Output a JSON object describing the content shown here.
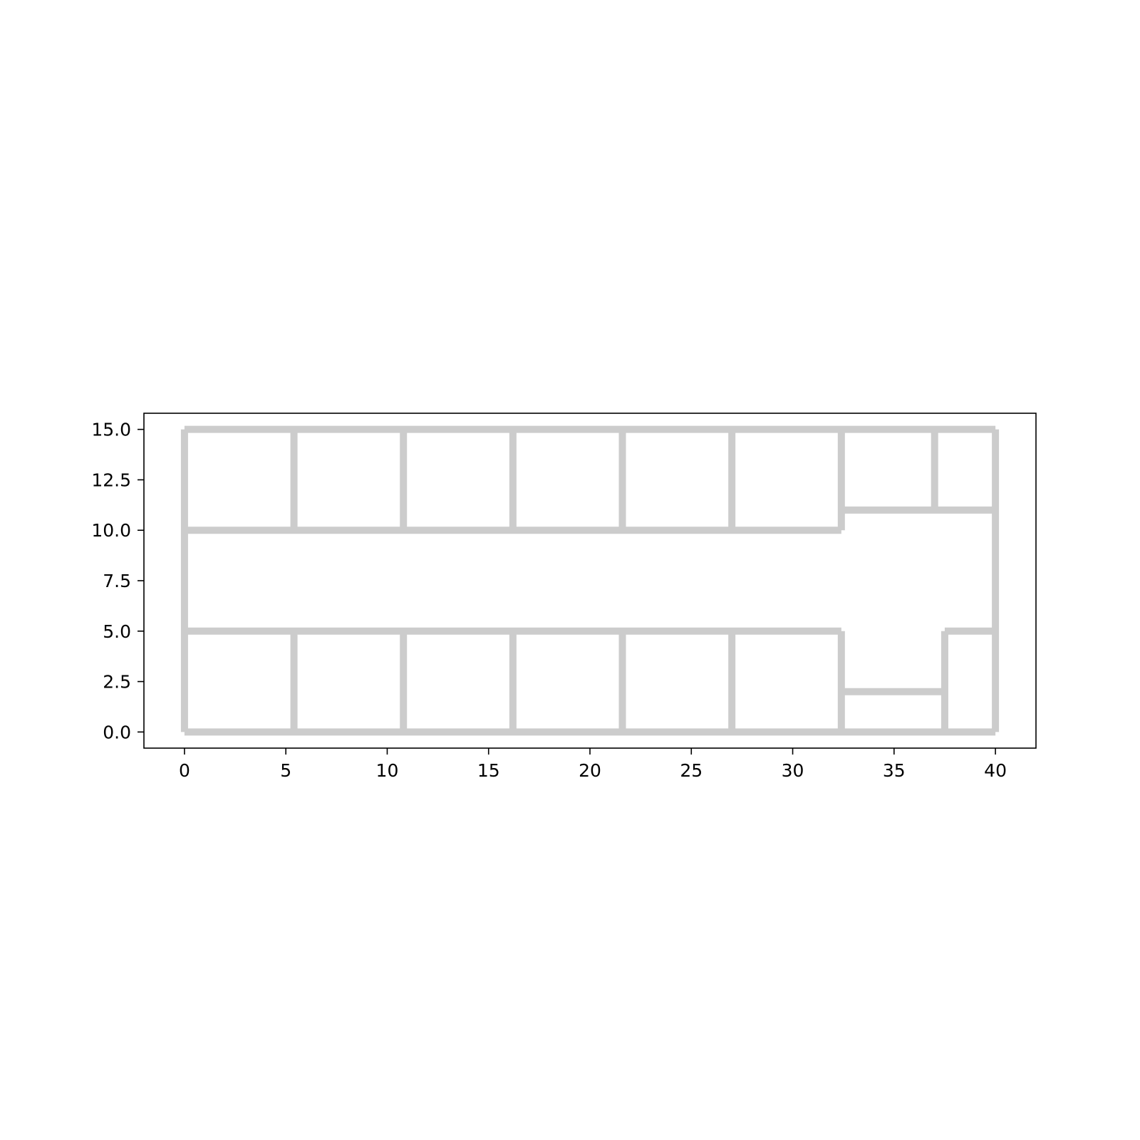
{
  "chart_data": {
    "type": "floor-plan",
    "title": "",
    "xlabel": "",
    "ylabel": "",
    "xlim": [
      -2,
      42
    ],
    "ylim": [
      -0.8,
      15.8
    ],
    "grid": false,
    "legend": "none",
    "x_ticks": [
      0,
      5,
      10,
      15,
      20,
      25,
      30,
      35,
      40
    ],
    "x_tick_labels": [
      "0",
      "5",
      "10",
      "15",
      "20",
      "25",
      "30",
      "35",
      "40"
    ],
    "y_ticks": [
      0,
      2.5,
      5,
      7.5,
      10,
      12.5,
      15
    ],
    "y_tick_labels": [
      "0.0",
      "2.5",
      "5.0",
      "7.5",
      "10.0",
      "12.5",
      "15.0"
    ],
    "wall_color": "#cccccc",
    "walls": [
      {
        "x": [
          0,
          40
        ],
        "y": [
          0,
          0
        ]
      },
      {
        "x": [
          0,
          40
        ],
        "y": [
          15,
          15
        ]
      },
      {
        "x": [
          0,
          0
        ],
        "y": [
          0,
          15
        ]
      },
      {
        "x": [
          40,
          40
        ],
        "y": [
          0,
          15
        ]
      },
      {
        "x": [
          0,
          32.4
        ],
        "y": [
          5,
          5
        ]
      },
      {
        "x": [
          0,
          32.4
        ],
        "y": [
          10,
          10
        ]
      },
      {
        "x": [
          5.4,
          5.4
        ],
        "y": [
          10,
          15
        ]
      },
      {
        "x": [
          10.8,
          10.8
        ],
        "y": [
          10,
          15
        ]
      },
      {
        "x": [
          16.2,
          16.2
        ],
        "y": [
          10,
          15
        ]
      },
      {
        "x": [
          21.6,
          21.6
        ],
        "y": [
          10,
          15
        ]
      },
      {
        "x": [
          27.0,
          27.0
        ],
        "y": [
          10,
          15
        ]
      },
      {
        "x": [
          32.4,
          32.4
        ],
        "y": [
          10,
          15
        ]
      },
      {
        "x": [
          5.4,
          5.4
        ],
        "y": [
          0,
          5
        ]
      },
      {
        "x": [
          10.8,
          10.8
        ],
        "y": [
          0,
          5
        ]
      },
      {
        "x": [
          16.2,
          16.2
        ],
        "y": [
          0,
          5
        ]
      },
      {
        "x": [
          21.6,
          21.6
        ],
        "y": [
          0,
          5
        ]
      },
      {
        "x": [
          27.0,
          27.0
        ],
        "y": [
          0,
          5
        ]
      },
      {
        "x": [
          32.4,
          32.4
        ],
        "y": [
          0,
          5
        ]
      },
      {
        "x": [
          32.4,
          40
        ],
        "y": [
          11,
          11
        ]
      },
      {
        "x": [
          37.0,
          37.0
        ],
        "y": [
          11,
          15
        ]
      },
      {
        "x": [
          32.4,
          37.5
        ],
        "y": [
          2,
          2
        ]
      },
      {
        "x": [
          37.5,
          37.5
        ],
        "y": [
          0,
          5
        ]
      },
      {
        "x": [
          37.5,
          40
        ],
        "y": [
          5,
          5
        ]
      }
    ]
  }
}
